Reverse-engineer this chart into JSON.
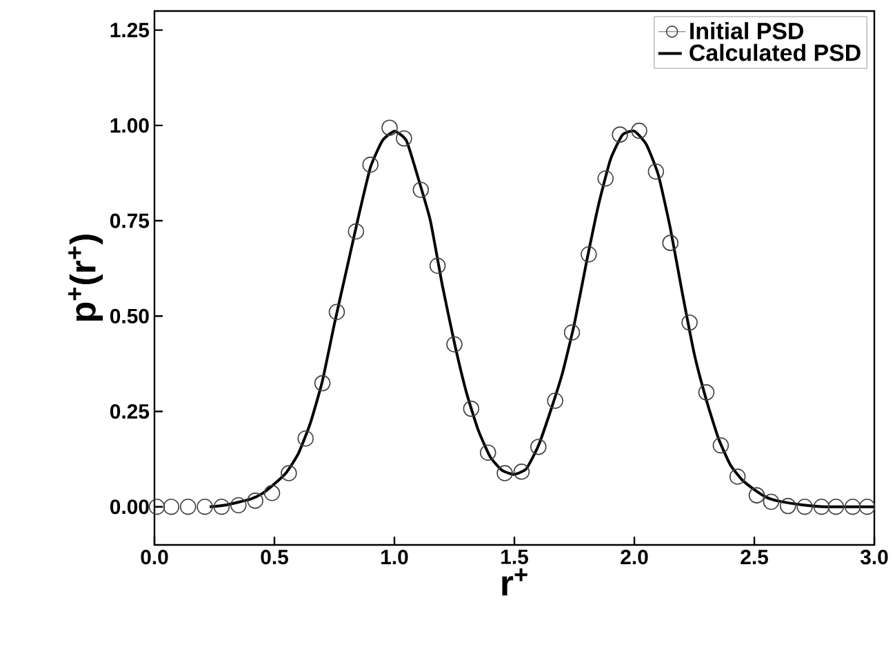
{
  "chart_data": {
    "type": "line",
    "xlabel": "r$^{+}$",
    "ylabel": "p$^{+}$(r$^{+}$)",
    "xlim": [
      0,
      3
    ],
    "ylim": [
      -0.1,
      1.3
    ],
    "xticks": [
      {
        "value": 0,
        "label": "0.0"
      },
      {
        "value": 0.5,
        "label": "0.5"
      },
      {
        "value": 1,
        "label": "1.0"
      },
      {
        "value": 1.5,
        "label": "1.5"
      },
      {
        "value": 2,
        "label": "2.0"
      },
      {
        "value": 2.5,
        "label": "2.5"
      },
      {
        "value": 3,
        "label": "3.0"
      }
    ],
    "yticks": [
      {
        "value": 0,
        "label": "0.00"
      },
      {
        "value": 0.25,
        "label": "0.25"
      },
      {
        "value": 0.5,
        "label": "0.50"
      },
      {
        "value": 0.75,
        "label": "0.75"
      },
      {
        "value": 1,
        "label": "1.00"
      },
      {
        "value": 1.25,
        "label": "1.25"
      }
    ],
    "legend": "top right",
    "grid": false,
    "series": [
      {
        "name": "Initial PSD",
        "type": "scatter",
        "marker": "circle",
        "color": "#404040",
        "x": [
          0.01,
          0.07,
          0.14,
          0.21,
          0.28,
          0.35,
          0.42,
          0.49,
          0.56,
          0.63,
          0.7,
          0.76,
          0.84,
          0.9,
          0.98,
          1.04,
          1.11,
          1.18,
          1.25,
          1.32,
          1.39,
          1.46,
          1.53,
          1.6,
          1.67,
          1.74,
          1.81,
          1.88,
          1.94,
          2.02,
          2.09,
          2.15,
          2.23,
          2.3,
          2.36,
          2.43,
          2.51,
          2.57,
          2.64,
          2.71,
          2.78,
          2.84,
          2.91,
          2.97
        ],
        "values": [
          0,
          0,
          0,
          0,
          0,
          0.004,
          0.016,
          0.036,
          0.088,
          0.179,
          0.324,
          0.511,
          0.722,
          0.897,
          0.994,
          0.966,
          0.831,
          0.632,
          0.426,
          0.257,
          0.142,
          0.088,
          0.092,
          0.157,
          0.278,
          0.457,
          0.662,
          0.861,
          0.976,
          0.986,
          0.879,
          0.692,
          0.483,
          0.3,
          0.161,
          0.079,
          0.03,
          0.013,
          0.002,
          0,
          0,
          0,
          0,
          0
        ]
      },
      {
        "name": "Calculated PSD",
        "marker": "none",
        "line_style": "solid",
        "color": "#000000",
        "x": [
          0.23,
          0.3,
          0.4,
          0.45,
          0.5,
          0.55,
          0.6,
          0.65,
          0.7,
          0.75,
          0.8,
          0.85,
          0.9,
          0.95,
          1.0,
          1.05,
          1.1,
          1.15,
          1.2,
          1.25,
          1.3,
          1.35,
          1.4,
          1.45,
          1.5,
          1.55,
          1.6,
          1.65,
          1.7,
          1.75,
          1.8,
          1.85,
          1.9,
          1.95,
          2.0,
          2.05,
          2.1,
          2.15,
          2.2,
          2.25,
          2.3,
          2.35,
          2.4,
          2.45,
          2.5,
          2.55,
          2.6,
          2.7,
          2.8,
          3.0
        ],
        "values": [
          0,
          0.005,
          0.02,
          0.035,
          0.06,
          0.09,
          0.14,
          0.22,
          0.33,
          0.48,
          0.62,
          0.76,
          0.89,
          0.96,
          0.985,
          0.96,
          0.86,
          0.75,
          0.58,
          0.43,
          0.3,
          0.2,
          0.13,
          0.095,
          0.085,
          0.1,
          0.16,
          0.25,
          0.35,
          0.48,
          0.64,
          0.79,
          0.91,
          0.975,
          0.985,
          0.95,
          0.87,
          0.73,
          0.56,
          0.4,
          0.28,
          0.18,
          0.11,
          0.07,
          0.045,
          0.025,
          0.015,
          0.005,
          0,
          0
        ]
      }
    ]
  }
}
